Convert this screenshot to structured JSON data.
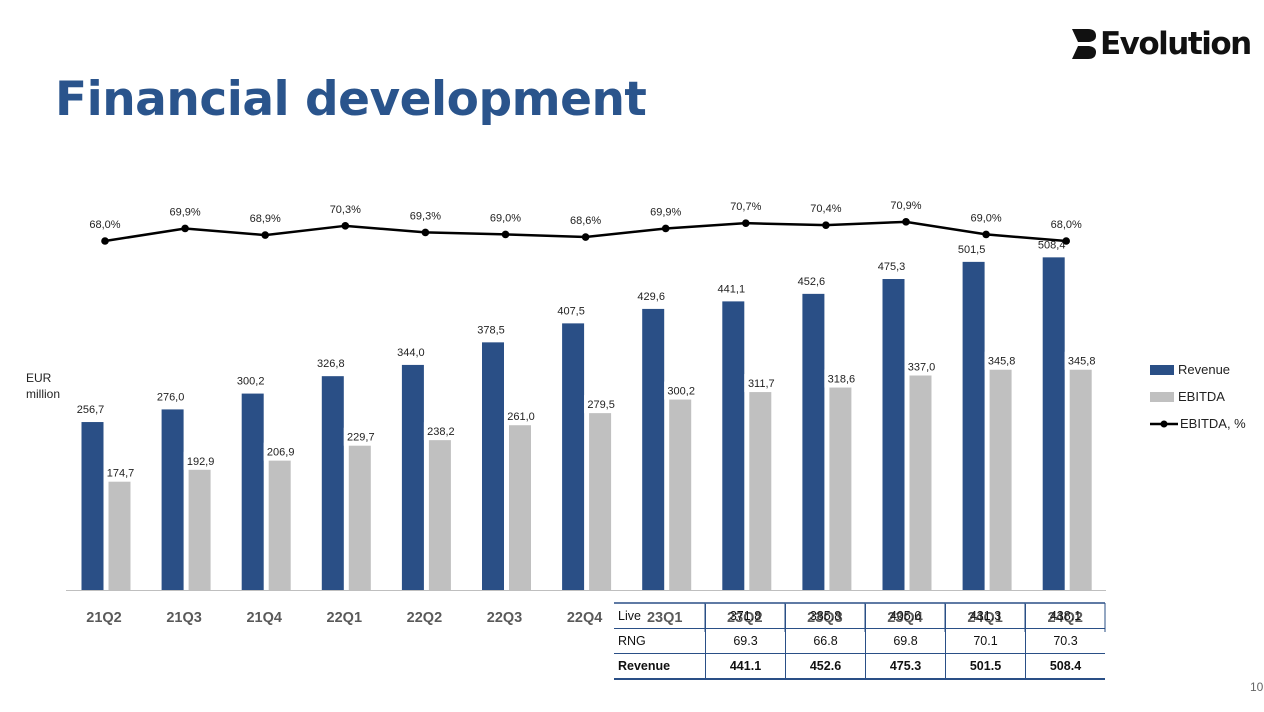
{
  "logo": {
    "text": "Evolution"
  },
  "slide": {
    "title": "Financial development",
    "page_number": "10"
  },
  "colors": {
    "revenue": "#2a4f86",
    "ebitda": "#c0c0c0",
    "margin_line": "#000000",
    "title": "#2a548c"
  },
  "chart_data": {
    "type": "bar",
    "ylabel": "EUR million",
    "categories": [
      "21Q2",
      "21Q3",
      "21Q4",
      "22Q1",
      "22Q2",
      "22Q3",
      "22Q4",
      "23Q1",
      "23Q2",
      "23Q3",
      "23Q4",
      "24Q1",
      "24Q2"
    ],
    "series": [
      {
        "name": "Revenue",
        "type": "bar",
        "values": [
          256.7,
          276.0,
          300.2,
          326.8,
          344.0,
          378.5,
          407.5,
          429.6,
          441.1,
          452.6,
          475.3,
          501.5,
          508.4
        ],
        "labels": [
          "256,7",
          "276,0",
          "300,2",
          "326,8",
          "344,0",
          "378,5",
          "407,5",
          "429,6",
          "441,1",
          "452,6",
          "475,3",
          "501,5",
          "508,4"
        ]
      },
      {
        "name": "EBITDA",
        "type": "bar",
        "values": [
          174.7,
          192.9,
          206.9,
          229.7,
          238.2,
          261.0,
          279.5,
          300.2,
          311.7,
          318.6,
          337.0,
          345.8,
          345.8
        ],
        "labels": [
          "174,7",
          "192,9",
          "206,9",
          "229,7",
          "238,2",
          "261,0",
          "279,5",
          "300,2",
          "311,7",
          "318,6",
          "337,0",
          "345,8",
          "345,8"
        ]
      },
      {
        "name": "EBITDA, %",
        "type": "line",
        "values": [
          68.0,
          69.9,
          68.9,
          70.3,
          69.3,
          69.0,
          68.6,
          69.9,
          70.7,
          70.4,
          70.9,
          69.0,
          68.0
        ],
        "labels": [
          "68,0%",
          "69,9%",
          "68,9%",
          "70,3%",
          "69,3%",
          "69,0%",
          "68,6%",
          "69,9%",
          "70,7%",
          "70,4%",
          "70,9%",
          "69,0%",
          "68,0%"
        ]
      }
    ],
    "legend": {
      "position": "right"
    },
    "grid": false
  },
  "table": {
    "columns": [
      "23Q2",
      "23Q3",
      "23Q4",
      "24Q1",
      "24Q2"
    ],
    "rows": [
      {
        "label": "Live",
        "values": [
          "371.8",
          "385.8",
          "405.6",
          "431.3",
          "438.1"
        ]
      },
      {
        "label": "RNG",
        "values": [
          "69.3",
          "66.8",
          "69.8",
          "70.1",
          "70.3"
        ]
      },
      {
        "label": "Revenue",
        "values": [
          "441.1",
          "452.6",
          "475.3",
          "501.5",
          "508.4"
        ]
      }
    ]
  }
}
